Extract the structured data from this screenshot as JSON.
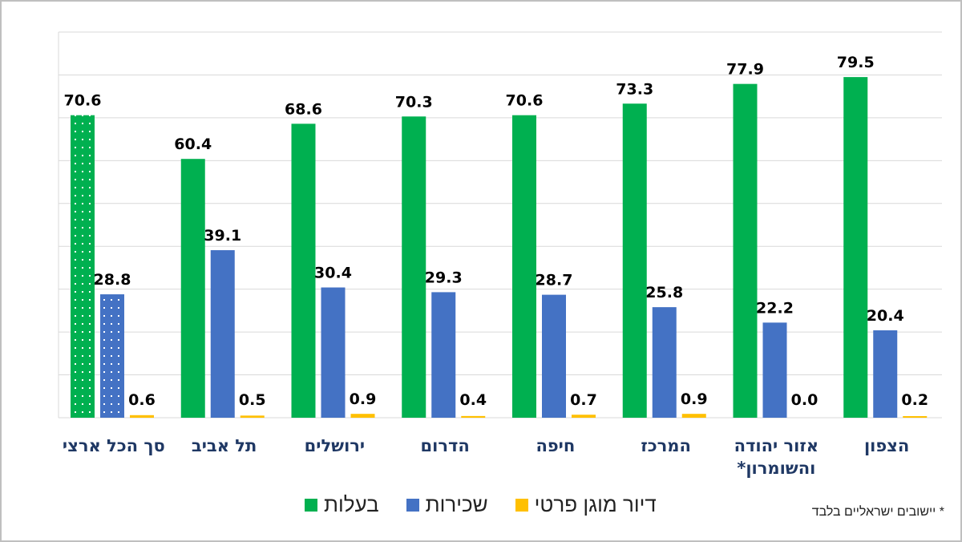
{
  "chart_data": {
    "type": "bar",
    "title": "",
    "xlabel": "",
    "ylabel": "",
    "ylim": [
      0,
      90
    ],
    "grid": true,
    "categories": [
      "סך הכל ארצי",
      "תל אביב",
      "ירושלים",
      "הדרום",
      "חיפה",
      "המרכז",
      "אזור יהודה והשומרון*",
      "הצפון"
    ],
    "series": [
      {
        "name": "בעלות",
        "color": "#00B050",
        "values": [
          70.6,
          60.4,
          68.6,
          70.3,
          70.6,
          73.3,
          77.9,
          79.5
        ]
      },
      {
        "name": "שכירות",
        "color": "#4472C4",
        "values": [
          28.8,
          39.1,
          30.4,
          29.3,
          28.7,
          25.8,
          22.2,
          20.4
        ]
      },
      {
        "name": "דיור מוגן פרטי",
        "color": "#FFC000",
        "values": [
          0.6,
          0.5,
          0.9,
          0.4,
          0.7,
          0.9,
          0.0,
          0.2
        ]
      }
    ],
    "legend_position": "bottom",
    "footnote": "* יישובים ישראליים בלבד"
  }
}
